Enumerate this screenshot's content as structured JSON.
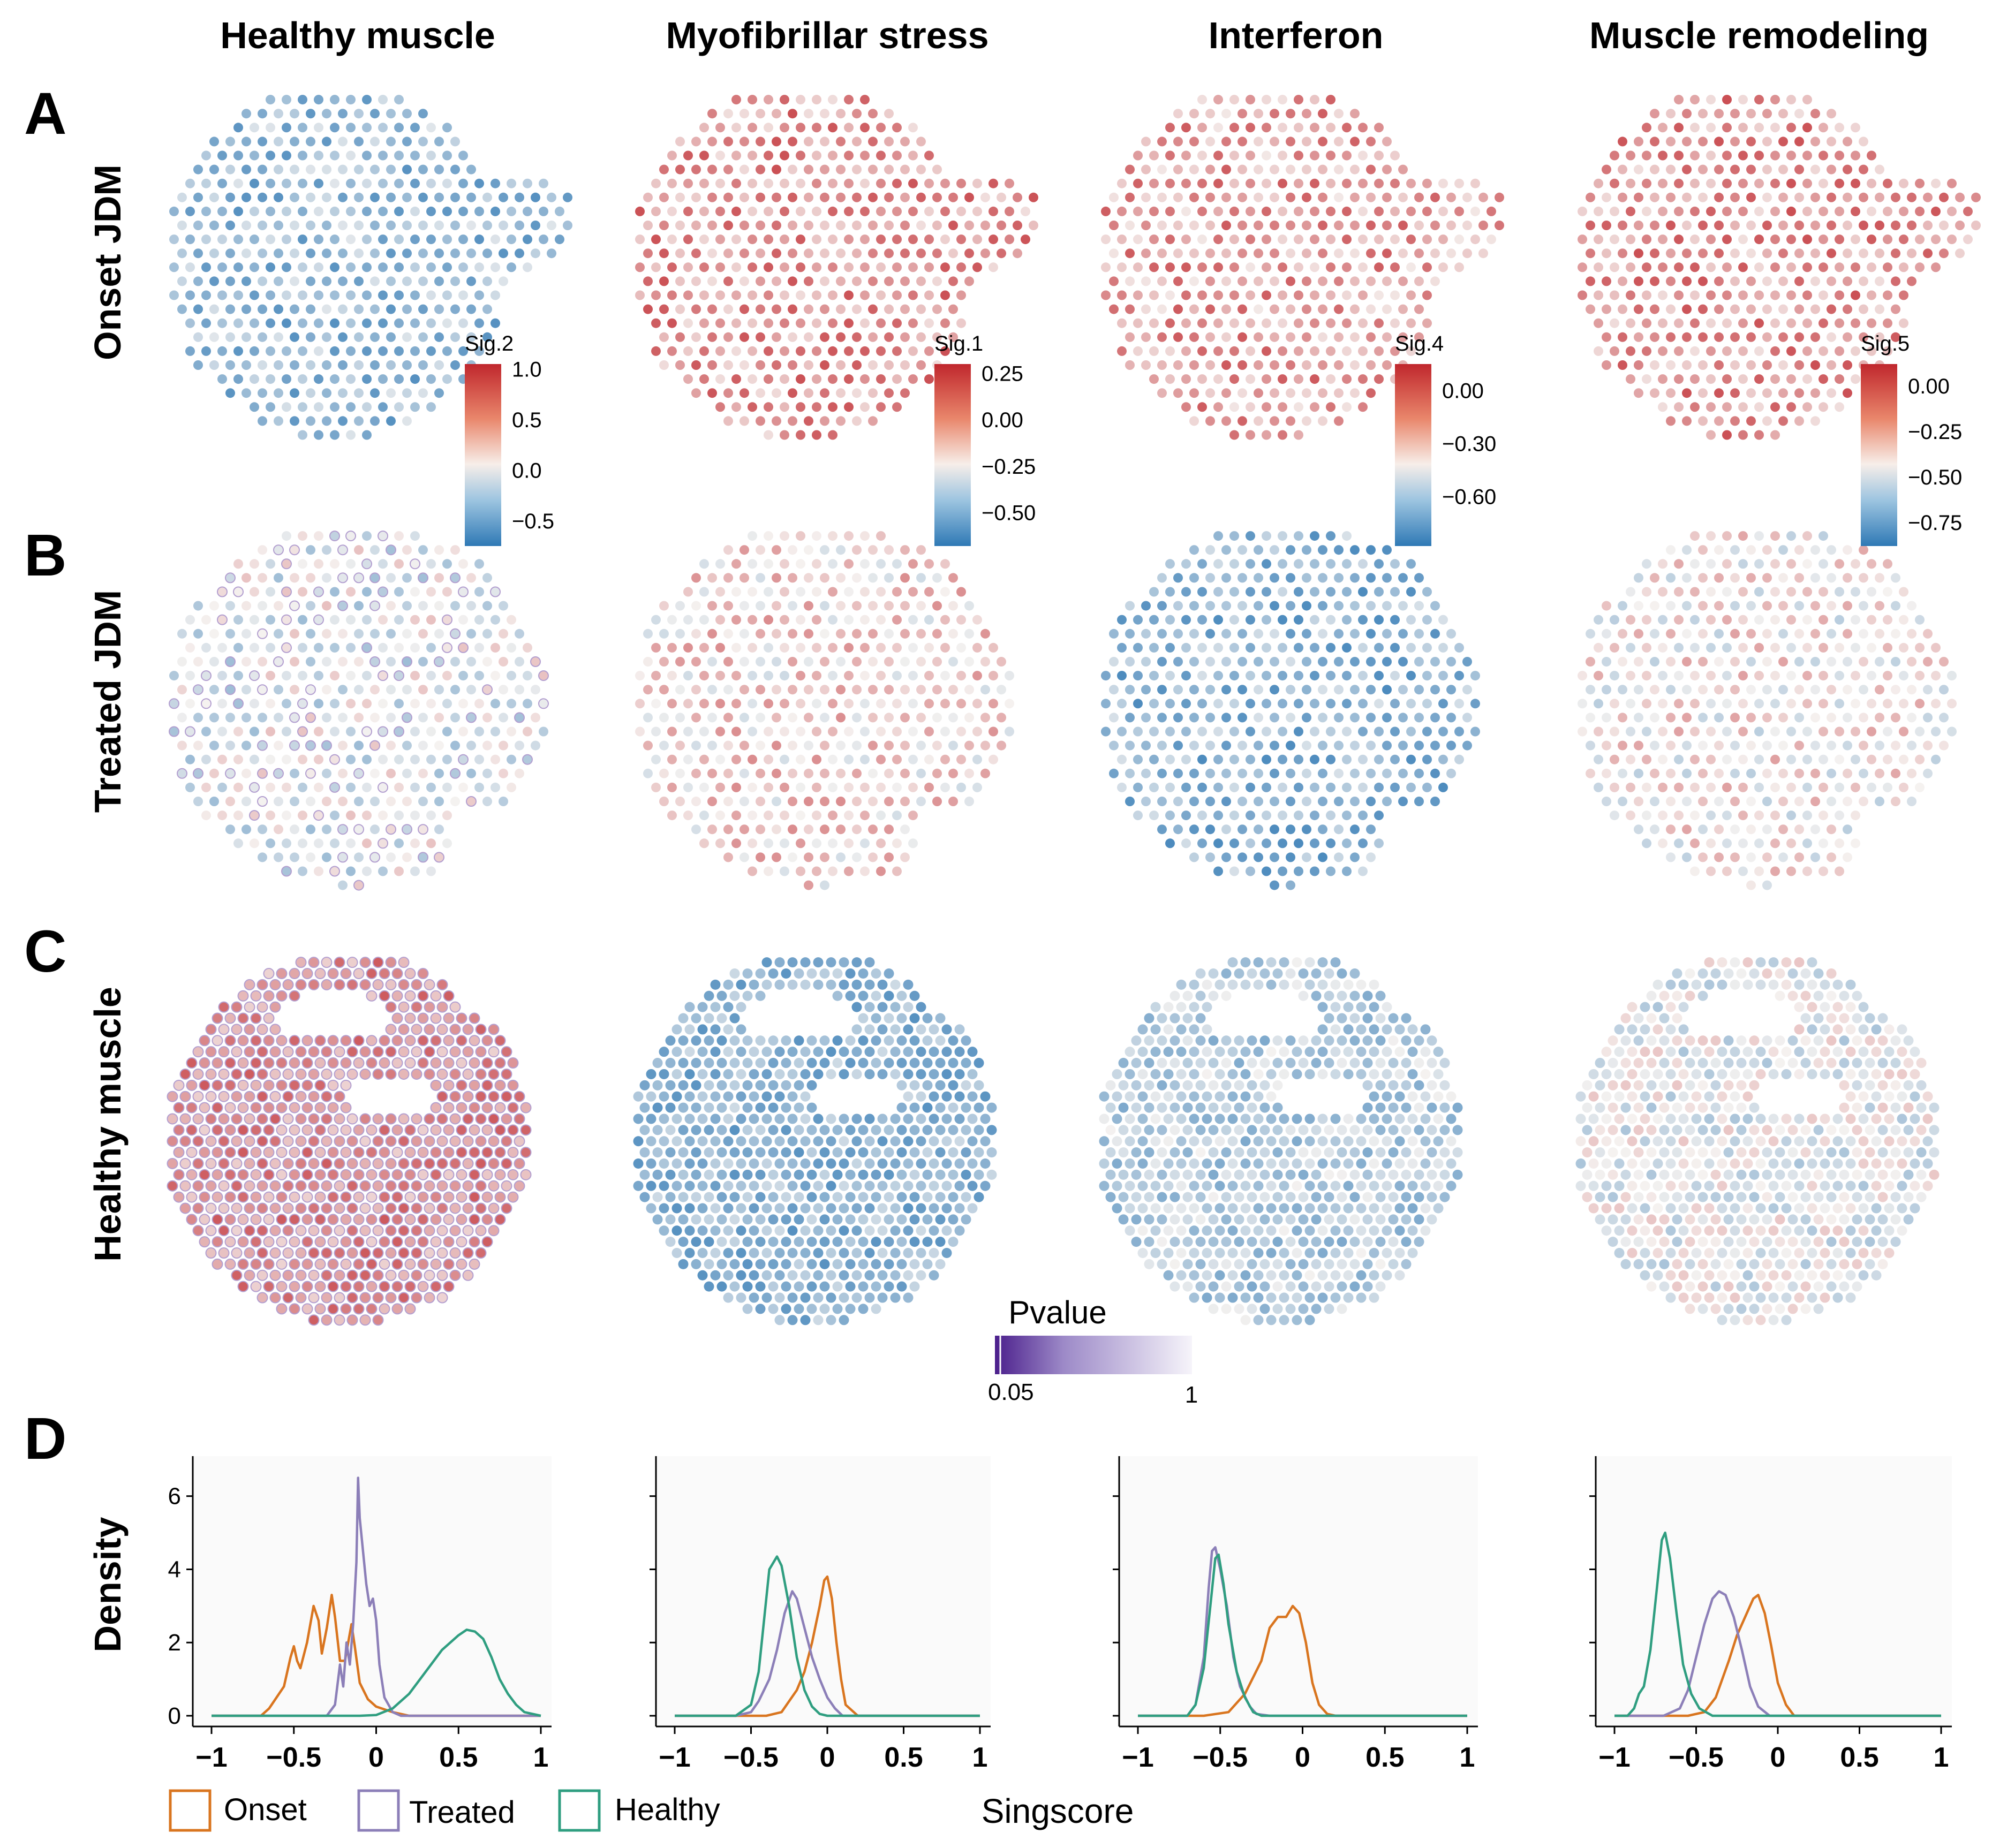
{
  "columns": [
    {
      "title": "Healthy muscle",
      "sig": "Sig.2",
      "colorbar_ticks": [
        "1.0",
        "0.5",
        "0.0",
        "−0.5"
      ],
      "colorbar_values": [
        1.0,
        0.5,
        0.0,
        -0.5
      ],
      "colorbar_range": [
        -0.75,
        1.05
      ]
    },
    {
      "title": "Myofibrillar stress",
      "sig": "Sig.1",
      "colorbar_ticks": [
        "0.25",
        "0.00",
        "−0.25",
        "−0.50"
      ],
      "colorbar_values": [
        0.25,
        0.0,
        -0.25,
        -0.5
      ],
      "colorbar_range": [
        -0.68,
        0.3
      ]
    },
    {
      "title": "Interferon",
      "sig": "Sig.4",
      "colorbar_ticks": [
        "0.00",
        "−0.30",
        "−0.60"
      ],
      "colorbar_values": [
        0.0,
        -0.3,
        -0.6
      ],
      "colorbar_range": [
        -0.88,
        0.15
      ]
    },
    {
      "title": "Muscle remodeling",
      "sig": "Sig.5",
      "colorbar_ticks": [
        "0.00",
        "−0.25",
        "−0.50",
        "−0.75"
      ],
      "colorbar_values": [
        0.0,
        -0.25,
        -0.5,
        -0.75
      ],
      "colorbar_range": [
        -0.88,
        0.12
      ]
    }
  ],
  "rows": [
    {
      "letter": "A",
      "label": "Onset JDM"
    },
    {
      "letter": "B",
      "label": "Treated JDM"
    },
    {
      "letter": "C",
      "label": "Healthy muscle"
    },
    {
      "letter": "D",
      "label": "Density"
    }
  ],
  "pvalue_legend": {
    "title": "Pvalue",
    "low": "0.05",
    "high": "1"
  },
  "colors": {
    "onset": "#d9751f",
    "treated": "#8c7fb8",
    "healthy": "#2f9e80",
    "high": "#c0272d",
    "mid": "#f5f2f0",
    "low": "#2f79b5",
    "pvalue_dark": "#4b1f8c"
  },
  "chart_data": {
    "type": "line",
    "title": "",
    "xlabel": "Singscore",
    "ylabel": "Density",
    "xlim": [
      -1,
      1
    ],
    "ylim": [
      0,
      6.8
    ],
    "x_ticks": [
      "−1",
      "−0.5",
      "0",
      "0.5",
      "1"
    ],
    "y_ticks": [
      "0",
      "2",
      "4",
      "6"
    ],
    "legend": [
      "Onset",
      "Treated",
      "Healthy"
    ],
    "legend_placement": "bottom-left",
    "panels": [
      {
        "title": "Healthy muscle",
        "series": [
          {
            "name": "Onset",
            "color": "#d9751f",
            "points": [
              [
                -1,
                0
              ],
              [
                -0.7,
                0
              ],
              [
                -0.65,
                0.2
              ],
              [
                -0.56,
                0.8
              ],
              [
                -0.52,
                1.6
              ],
              [
                -0.5,
                1.9
              ],
              [
                -0.48,
                1.5
              ],
              [
                -0.46,
                1.3
              ],
              [
                -0.42,
                2.0
              ],
              [
                -0.38,
                3.0
              ],
              [
                -0.35,
                2.6
              ],
              [
                -0.33,
                1.7
              ],
              [
                -0.3,
                2.4
              ],
              [
                -0.27,
                3.3
              ],
              [
                -0.25,
                2.7
              ],
              [
                -0.22,
                1.5
              ],
              [
                -0.19,
                1.5
              ],
              [
                -0.15,
                2.5
              ],
              [
                -0.13,
                1.9
              ],
              [
                -0.1,
                0.9
              ],
              [
                -0.05,
                0.45
              ],
              [
                0.0,
                0.25
              ],
              [
                0.1,
                0.1
              ],
              [
                0.2,
                0
              ],
              [
                1,
                0
              ]
            ]
          },
          {
            "name": "Treated",
            "color": "#8c7fb8",
            "points": [
              [
                -1,
                0
              ],
              [
                -0.3,
                0
              ],
              [
                -0.25,
                0.3
              ],
              [
                -0.22,
                1.4
              ],
              [
                -0.2,
                0.8
              ],
              [
                -0.18,
                2.0
              ],
              [
                -0.16,
                1.4
              ],
              [
                -0.14,
                2.5
              ],
              [
                -0.12,
                4.2
              ],
              [
                -0.11,
                6.5
              ],
              [
                -0.1,
                5.4
              ],
              [
                -0.08,
                4.5
              ],
              [
                -0.06,
                3.6
              ],
              [
                -0.04,
                3.0
              ],
              [
                -0.02,
                3.2
              ],
              [
                0.0,
                2.6
              ],
              [
                0.02,
                1.4
              ],
              [
                0.05,
                0.5
              ],
              [
                0.1,
                0.1
              ],
              [
                0.15,
                0
              ],
              [
                1,
                0
              ]
            ]
          },
          {
            "name": "Healthy",
            "color": "#2f9e80",
            "points": [
              [
                -1,
                0
              ],
              [
                -0.1,
                0
              ],
              [
                0.0,
                0.02
              ],
              [
                0.1,
                0.2
              ],
              [
                0.2,
                0.6
              ],
              [
                0.3,
                1.2
              ],
              [
                0.4,
                1.8
              ],
              [
                0.5,
                2.2
              ],
              [
                0.55,
                2.35
              ],
              [
                0.6,
                2.3
              ],
              [
                0.65,
                2.1
              ],
              [
                0.7,
                1.6
              ],
              [
                0.75,
                1.0
              ],
              [
                0.8,
                0.6
              ],
              [
                0.85,
                0.3
              ],
              [
                0.9,
                0.1
              ],
              [
                1.0,
                0
              ]
            ]
          }
        ]
      },
      {
        "title": "Myofibrillar stress",
        "series": [
          {
            "name": "Onset",
            "color": "#d9751f",
            "points": [
              [
                -1,
                0
              ],
              [
                -0.4,
                0
              ],
              [
                -0.3,
                0.1
              ],
              [
                -0.2,
                0.7
              ],
              [
                -0.15,
                1.2
              ],
              [
                -0.1,
                2.0
              ],
              [
                -0.05,
                3.0
              ],
              [
                -0.02,
                3.7
              ],
              [
                0.0,
                3.8
              ],
              [
                0.03,
                3.2
              ],
              [
                0.06,
                2.0
              ],
              [
                0.09,
                1.0
              ],
              [
                0.12,
                0.3
              ],
              [
                0.2,
                0
              ],
              [
                1,
                0
              ]
            ]
          },
          {
            "name": "Treated",
            "color": "#8c7fb8",
            "points": [
              [
                -1,
                0
              ],
              [
                -0.6,
                0
              ],
              [
                -0.5,
                0.1
              ],
              [
                -0.45,
                0.4
              ],
              [
                -0.38,
                1.0
              ],
              [
                -0.33,
                1.8
              ],
              [
                -0.28,
                2.8
              ],
              [
                -0.23,
                3.4
              ],
              [
                -0.2,
                3.2
              ],
              [
                -0.15,
                2.4
              ],
              [
                -0.1,
                1.6
              ],
              [
                -0.05,
                1.0
              ],
              [
                0.0,
                0.5
              ],
              [
                0.05,
                0.2
              ],
              [
                0.1,
                0
              ],
              [
                1,
                0
              ]
            ]
          },
          {
            "name": "Healthy",
            "color": "#2f9e80",
            "points": [
              [
                -1,
                0
              ],
              [
                -0.6,
                0
              ],
              [
                -0.5,
                0.3
              ],
              [
                -0.45,
                1.2
              ],
              [
                -0.4,
                3.2
              ],
              [
                -0.38,
                4.0
              ],
              [
                -0.33,
                4.35
              ],
              [
                -0.3,
                4.1
              ],
              [
                -0.25,
                3.0
              ],
              [
                -0.2,
                1.6
              ],
              [
                -0.15,
                0.7
              ],
              [
                -0.1,
                0.25
              ],
              [
                -0.05,
                0.05
              ],
              [
                0,
                0
              ],
              [
                1,
                0
              ]
            ]
          }
        ]
      },
      {
        "title": "Interferon",
        "series": [
          {
            "name": "Onset",
            "color": "#d9751f",
            "points": [
              [
                -1,
                0
              ],
              [
                -0.6,
                0
              ],
              [
                -0.45,
                0.1
              ],
              [
                -0.35,
                0.6
              ],
              [
                -0.25,
                1.5
              ],
              [
                -0.2,
                2.4
              ],
              [
                -0.15,
                2.7
              ],
              [
                -0.1,
                2.7
              ],
              [
                -0.06,
                3.0
              ],
              [
                -0.02,
                2.8
              ],
              [
                0.02,
                2.0
              ],
              [
                0.06,
                0.9
              ],
              [
                0.1,
                0.3
              ],
              [
                0.15,
                0.05
              ],
              [
                0.2,
                0
              ],
              [
                1,
                0
              ]
            ]
          },
          {
            "name": "Treated",
            "color": "#8c7fb8",
            "points": [
              [
                -1,
                0
              ],
              [
                -0.7,
                0
              ],
              [
                -0.65,
                0.3
              ],
              [
                -0.6,
                1.6
              ],
              [
                -0.57,
                3.5
              ],
              [
                -0.55,
                4.5
              ],
              [
                -0.53,
                4.6
              ],
              [
                -0.5,
                4.0
              ],
              [
                -0.46,
                3.0
              ],
              [
                -0.42,
                1.6
              ],
              [
                -0.38,
                0.8
              ],
              [
                -0.32,
                0.25
              ],
              [
                -0.28,
                0.05
              ],
              [
                -0.2,
                0
              ],
              [
                1,
                0
              ]
            ]
          },
          {
            "name": "Healthy",
            "color": "#2f9e80",
            "points": [
              [
                -1,
                0
              ],
              [
                -0.7,
                0
              ],
              [
                -0.65,
                0.3
              ],
              [
                -0.6,
                1.3
              ],
              [
                -0.56,
                3.0
              ],
              [
                -0.53,
                4.3
              ],
              [
                -0.51,
                4.4
              ],
              [
                -0.48,
                3.6
              ],
              [
                -0.45,
                2.5
              ],
              [
                -0.4,
                1.2
              ],
              [
                -0.35,
                0.5
              ],
              [
                -0.3,
                0.1
              ],
              [
                -0.25,
                0
              ],
              [
                1,
                0
              ]
            ]
          }
        ]
      },
      {
        "title": "Muscle remodeling",
        "series": [
          {
            "name": "Onset",
            "color": "#d9751f",
            "points": [
              [
                -1,
                0
              ],
              [
                -0.55,
                0
              ],
              [
                -0.45,
                0.1
              ],
              [
                -0.38,
                0.5
              ],
              [
                -0.3,
                1.5
              ],
              [
                -0.25,
                2.2
              ],
              [
                -0.2,
                2.7
              ],
              [
                -0.15,
                3.2
              ],
              [
                -0.12,
                3.3
              ],
              [
                -0.08,
                2.8
              ],
              [
                -0.04,
                1.9
              ],
              [
                0.0,
                0.9
              ],
              [
                0.05,
                0.3
              ],
              [
                0.1,
                0
              ],
              [
                1,
                0
              ]
            ]
          },
          {
            "name": "Treated",
            "color": "#8c7fb8",
            "points": [
              [
                -1,
                0
              ],
              [
                -0.7,
                0
              ],
              [
                -0.6,
                0.2
              ],
              [
                -0.55,
                0.7
              ],
              [
                -0.5,
                1.6
              ],
              [
                -0.45,
                2.5
              ],
              [
                -0.4,
                3.2
              ],
              [
                -0.36,
                3.4
              ],
              [
                -0.32,
                3.3
              ],
              [
                -0.27,
                2.7
              ],
              [
                -0.22,
                1.8
              ],
              [
                -0.17,
                0.8
              ],
              [
                -0.12,
                0.25
              ],
              [
                -0.05,
                0
              ],
              [
                1,
                0
              ]
            ]
          },
          {
            "name": "Healthy",
            "color": "#2f9e80",
            "points": [
              [
                -1,
                0
              ],
              [
                -0.92,
                0
              ],
              [
                -0.88,
                0.2
              ],
              [
                -0.85,
                0.6
              ],
              [
                -0.82,
                0.8
              ],
              [
                -0.78,
                1.8
              ],
              [
                -0.74,
                3.5
              ],
              [
                -0.71,
                4.8
              ],
              [
                -0.69,
                5.0
              ],
              [
                -0.66,
                4.3
              ],
              [
                -0.62,
                2.8
              ],
              [
                -0.58,
                1.4
              ],
              [
                -0.53,
                0.6
              ],
              [
                -0.48,
                0.2
              ],
              [
                -0.4,
                0
              ],
              [
                1,
                0
              ]
            ]
          }
        ]
      }
    ]
  }
}
